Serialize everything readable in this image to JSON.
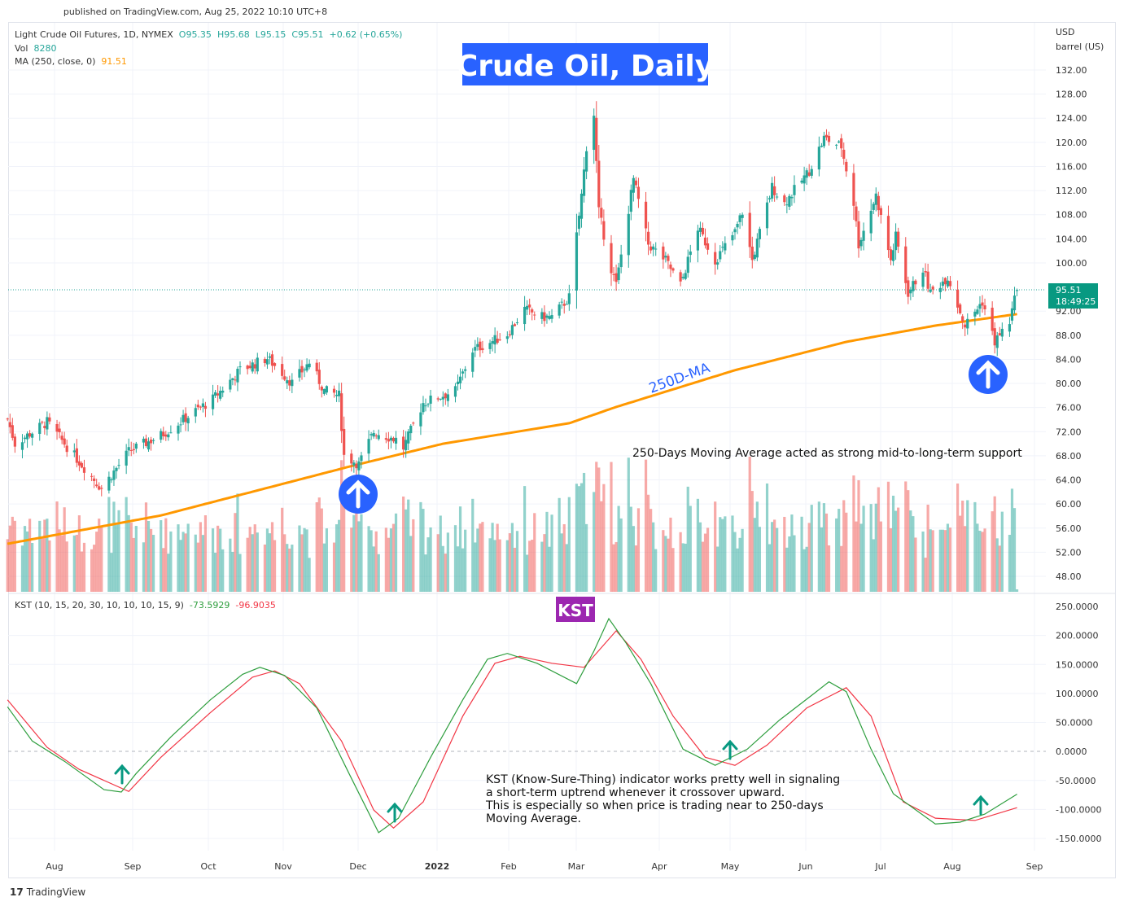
{
  "header": {
    "published": "published on TradingView.com, Aug 25, 2022 10:10 UTC+8"
  },
  "legend": {
    "symbol": "Light Crude Oil Futures, 1D, NYMEX",
    "open": "O95.35",
    "high": "H95.68",
    "low": "L95.15",
    "close": "C95.51",
    "change": "+0.62 (+0.65%)",
    "vol_label": "Vol",
    "vol_value": "8280",
    "ma_label": "MA (250, close, 0)",
    "ma_value": "91.51",
    "kst_label": "KST (10, 15, 20, 30, 10, 10, 10, 15, 9)",
    "kst_value": "-73.5929",
    "kst_signal_value": "-96.9035"
  },
  "axis": {
    "currency": "USD",
    "unit": "barrel (US)",
    "last_price": "95.51",
    "countdown": "18:49:25"
  },
  "annotations": {
    "title": "Crude Oil, Daily",
    "kst_box": "KST",
    "ma_label": "250D-MA",
    "ma_note": "250-Days Moving Average acted as strong mid-to-long-term support",
    "kst_note": [
      "KST (Know-Sure-Thing) indicator works pretty well in signaling",
      "a short-term uptrend whenever it crossover upward.",
      "This is especially so when price is trading near to 250-days",
      "Moving Average."
    ]
  },
  "brand": "TradingView",
  "colors": {
    "up": "#26a69a",
    "down": "#ef5350",
    "ma": "#ff9800",
    "kst": "#2e9e3e",
    "signal": "#f23645",
    "title_bg": "#2962ff",
    "kst_bg": "#9c27b0",
    "arrow": "#089981"
  },
  "chart_data": [
    {
      "type": "candlestick",
      "title": "",
      "price_ticks": [
        "132.00",
        "128.00",
        "124.00",
        "120.00",
        "116.00",
        "112.00",
        "108.00",
        "104.00",
        "100.00",
        "92.00",
        "88.00",
        "84.00",
        "80.00",
        "76.00",
        "72.00",
        "68.00",
        "64.00",
        "60.00",
        "56.00",
        "52.00",
        "48.00"
      ],
      "ylim": [
        46,
        134
      ],
      "x_ticks": [
        "Aug",
        "Sep",
        "Oct",
        "Nov",
        "Dec",
        "2022",
        "Feb",
        "Mar",
        "Apr",
        "May",
        "Jun",
        "Jul",
        "Aug",
        "Sep"
      ],
      "close_path": [
        [
          "2021-07-13",
          74.1
        ],
        [
          "2021-07-16",
          70
        ],
        [
          "2021-07-29",
          73.6
        ],
        [
          "2021-08-09",
          68
        ],
        [
          "2021-08-20",
          62.6
        ],
        [
          "2021-08-31",
          68.7
        ],
        [
          "2021-09-13",
          71.4
        ],
        [
          "2021-10-04",
          77.4
        ],
        [
          "2021-10-15",
          82.2
        ],
        [
          "2021-10-26",
          84.2
        ],
        [
          "2021-11-05",
          80.1
        ],
        [
          "2021-11-12",
          83.5
        ],
        [
          "2021-11-18",
          78.8
        ],
        [
          "2021-11-24",
          78
        ],
        [
          "2021-11-26",
          68
        ],
        [
          "2021-12-02",
          66.6
        ],
        [
          "2021-12-08",
          72
        ],
        [
          "2021-12-17",
          70.7
        ],
        [
          "2021-12-20",
          69.3
        ],
        [
          "2021-12-28",
          76.8
        ],
        [
          "2022-01-10",
          78.8
        ],
        [
          "2022-01-17",
          85.5
        ],
        [
          "2022-01-31",
          88.2
        ],
        [
          "2022-02-07",
          92.3
        ],
        [
          "2022-02-14",
          91
        ],
        [
          "2022-02-18",
          91
        ],
        [
          "2022-02-25",
          94.3
        ],
        [
          "2022-03-02",
          111.2
        ],
        [
          "2022-03-04",
          119.3
        ],
        [
          "2022-03-07",
          124.7
        ],
        [
          "2022-03-09",
          108.5
        ],
        [
          "2022-03-14",
          99
        ],
        [
          "2022-03-16",
          96.3
        ],
        [
          "2022-03-23",
          113.9
        ],
        [
          "2022-03-29",
          103.1
        ],
        [
          "2022-04-05",
          100.4
        ],
        [
          "2022-04-11",
          96.3
        ],
        [
          "2022-04-18",
          105.8
        ],
        [
          "2022-04-25",
          100.4
        ],
        [
          "2022-05-03",
          105.1
        ],
        [
          "2022-05-06",
          108.5
        ],
        [
          "2022-05-10",
          100.4
        ],
        [
          "2022-05-18",
          112.6
        ],
        [
          "2022-05-23",
          109.9
        ],
        [
          "2022-06-02",
          115.3
        ],
        [
          "2022-06-08",
          120.7
        ],
        [
          "2022-06-15",
          119.3
        ],
        [
          "2022-06-20",
          109.9
        ],
        [
          "2022-06-22",
          103.1
        ],
        [
          "2022-06-29",
          111.2
        ],
        [
          "2022-07-05",
          100.4
        ],
        [
          "2022-07-07",
          104.4
        ],
        [
          "2022-07-12",
          95
        ],
        [
          "2022-07-18",
          99
        ],
        [
          "2022-07-21",
          95
        ],
        [
          "2022-07-28",
          97.7
        ],
        [
          "2022-08-04",
          89.6
        ],
        [
          "2022-08-11",
          93.6
        ],
        [
          "2022-08-16",
          86.9
        ],
        [
          "2022-08-22",
          90.3
        ],
        [
          "2022-08-25",
          95.51
        ]
      ],
      "ma250": [
        [
          "2021-07-13",
          53.4
        ],
        [
          "2021-09-13",
          58.1
        ],
        [
          "2021-11-30",
          66.4
        ],
        [
          "2022-01-05",
          70
        ],
        [
          "2022-02-25",
          73.4
        ],
        [
          "2022-03-16",
          76.1
        ],
        [
          "2022-05-03",
          82.2
        ],
        [
          "2022-06-17",
          86.9
        ],
        [
          "2022-07-23",
          89.6
        ],
        [
          "2022-08-25",
          91.51
        ]
      ]
    },
    {
      "type": "line",
      "title": "KST",
      "y_ticks": [
        "250.0000",
        "200.0000",
        "150.0000",
        "100.0000",
        "50.0000",
        "0.0000",
        "-50.0000",
        "-100.0000",
        "-150.0000"
      ],
      "ylim": [
        -160,
        260
      ],
      "kst": [
        [
          "2021-07-13",
          77
        ],
        [
          "2021-07-23",
          18
        ],
        [
          "2021-08-05",
          -17
        ],
        [
          "2021-08-21",
          -66
        ],
        [
          "2021-08-28",
          -70
        ],
        [
          "2021-09-03",
          -38
        ],
        [
          "2021-09-17",
          25
        ],
        [
          "2021-10-03",
          89
        ],
        [
          "2021-10-16",
          133
        ],
        [
          "2021-10-23",
          145
        ],
        [
          "2021-11-02",
          131
        ],
        [
          "2021-11-15",
          75
        ],
        [
          "2021-11-28",
          -38
        ],
        [
          "2021-12-10",
          -140
        ],
        [
          "2021-12-18",
          -115
        ],
        [
          "2021-12-31",
          -10
        ],
        [
          "2022-01-13",
          89
        ],
        [
          "2022-01-23",
          159
        ],
        [
          "2022-01-31",
          169
        ],
        [
          "2022-02-12",
          152
        ],
        [
          "2022-02-28",
          117
        ],
        [
          "2022-03-07",
          173
        ],
        [
          "2022-03-13",
          229
        ],
        [
          "2022-03-20",
          187
        ],
        [
          "2022-03-30",
          117
        ],
        [
          "2022-04-12",
          4
        ],
        [
          "2022-04-25",
          -24
        ],
        [
          "2022-05-08",
          4
        ],
        [
          "2022-05-21",
          54
        ],
        [
          "2022-06-04",
          100
        ],
        [
          "2022-06-10",
          120
        ],
        [
          "2022-06-17",
          103
        ],
        [
          "2022-06-27",
          4
        ],
        [
          "2022-07-06",
          -73
        ],
        [
          "2022-07-23",
          -125
        ],
        [
          "2022-08-02",
          -122
        ],
        [
          "2022-08-12",
          -108
        ],
        [
          "2022-08-25",
          -73.59
        ]
      ],
      "signal": [
        [
          "2021-07-13",
          89
        ],
        [
          "2021-07-29",
          7
        ],
        [
          "2021-08-11",
          -31
        ],
        [
          "2021-08-31",
          -69
        ],
        [
          "2021-09-13",
          -10
        ],
        [
          "2021-10-03",
          67
        ],
        [
          "2021-10-20",
          128
        ],
        [
          "2021-10-29",
          139
        ],
        [
          "2021-11-08",
          117
        ],
        [
          "2021-11-25",
          18
        ],
        [
          "2021-12-08",
          -101
        ],
        [
          "2021-12-16",
          -132
        ],
        [
          "2021-12-28",
          -87
        ],
        [
          "2022-01-13",
          61
        ],
        [
          "2022-01-26",
          152
        ],
        [
          "2022-02-05",
          164
        ],
        [
          "2022-02-18",
          152
        ],
        [
          "2022-03-03",
          145
        ],
        [
          "2022-03-16",
          208
        ],
        [
          "2022-03-26",
          159
        ],
        [
          "2022-04-08",
          61
        ],
        [
          "2022-04-21",
          -10
        ],
        [
          "2022-05-03",
          -24
        ],
        [
          "2022-05-16",
          11
        ],
        [
          "2022-06-01",
          75
        ],
        [
          "2022-06-17",
          110
        ],
        [
          "2022-06-27",
          61
        ],
        [
          "2022-07-10",
          -87
        ],
        [
          "2022-07-23",
          -115
        ],
        [
          "2022-08-08",
          -119
        ],
        [
          "2022-08-25",
          -96.9
        ]
      ]
    }
  ]
}
